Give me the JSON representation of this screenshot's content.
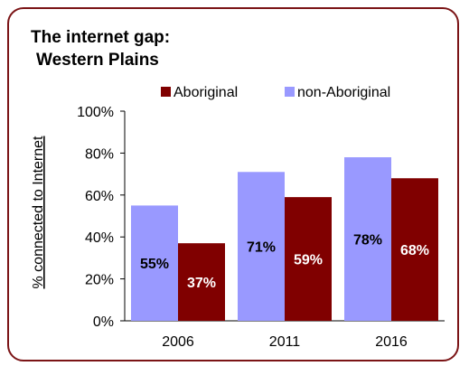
{
  "chart_data": {
    "type": "bar",
    "title_lines": [
      "The internet gap:",
      "Western Plains"
    ],
    "ylabel": "% connected to Internet",
    "xlabel": "",
    "categories": [
      "2006",
      "2011",
      "2016"
    ],
    "ylim": [
      0,
      100
    ],
    "yticks": [
      "0%",
      "20%",
      "40%",
      "60%",
      "80%",
      "100%"
    ],
    "legend_position": "top",
    "grid": false,
    "series": [
      {
        "name": "non-Aboriginal",
        "color": "#9999ff",
        "label_color": "#000000",
        "values": [
          55,
          71,
          78
        ],
        "labels": [
          "55%",
          "71%",
          "78%"
        ]
      },
      {
        "name": "Aboriginal",
        "color": "#800000",
        "label_color": "#ffffff",
        "values": [
          37,
          59,
          68
        ],
        "labels": [
          "37%",
          "59%",
          "68%"
        ]
      }
    ],
    "legend": [
      {
        "name": "Aboriginal",
        "color": "#800000"
      },
      {
        "name": "non-Aboriginal",
        "color": "#9999ff"
      }
    ]
  }
}
